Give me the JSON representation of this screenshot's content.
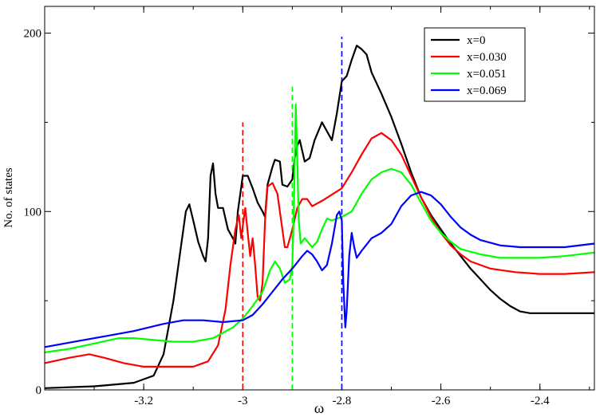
{
  "chart_data": {
    "type": "line",
    "title": "",
    "xlabel": "ω",
    "ylabel": "No. of states",
    "xlim": [
      -3.4,
      -2.29
    ],
    "ylim": [
      0,
      215
    ],
    "grid": false,
    "legend_position": "top-right",
    "x_ticks": [
      -3.2,
      -3.0,
      -2.8,
      -2.6,
      -2.4
    ],
    "x_tick_labels": [
      "-3.2",
      "-3",
      "-2.8",
      "-2.6",
      "-2.4"
    ],
    "y_ticks": [
      0,
      100,
      200
    ],
    "y_tick_labels": [
      "0",
      "100",
      "200"
    ],
    "series": [
      {
        "name": "x=0",
        "color": "#000000",
        "points": [
          [
            -3.4,
            1
          ],
          [
            -3.3,
            2
          ],
          [
            -3.22,
            4
          ],
          [
            -3.18,
            8
          ],
          [
            -3.16,
            20
          ],
          [
            -3.14,
            50
          ],
          [
            -3.125,
            80
          ],
          [
            -3.115,
            100
          ],
          [
            -3.108,
            104
          ],
          [
            -3.1,
            95
          ],
          [
            -3.09,
            83
          ],
          [
            -3.08,
            75
          ],
          [
            -3.075,
            72
          ],
          [
            -3.07,
            85
          ],
          [
            -3.065,
            120
          ],
          [
            -3.06,
            127
          ],
          [
            -3.055,
            110
          ],
          [
            -3.05,
            102
          ],
          [
            -3.04,
            102
          ],
          [
            -3.03,
            90
          ],
          [
            -3.02,
            85
          ],
          [
            -3.015,
            82
          ],
          [
            -3.01,
            100
          ],
          [
            -3.0,
            120
          ],
          [
            -2.99,
            120
          ],
          [
            -2.98,
            113
          ],
          [
            -2.97,
            105
          ],
          [
            -2.96,
            100
          ],
          [
            -2.955,
            97
          ],
          [
            -2.95,
            115
          ],
          [
            -2.94,
            125
          ],
          [
            -2.935,
            129
          ],
          [
            -2.925,
            128
          ],
          [
            -2.92,
            115
          ],
          [
            -2.91,
            114
          ],
          [
            -2.9,
            118
          ],
          [
            -2.895,
            130
          ],
          [
            -2.89,
            137
          ],
          [
            -2.885,
            140
          ],
          [
            -2.875,
            128
          ],
          [
            -2.865,
            130
          ],
          [
            -2.855,
            140
          ],
          [
            -2.84,
            150
          ],
          [
            -2.83,
            145
          ],
          [
            -2.82,
            140
          ],
          [
            -2.81,
            155
          ],
          [
            -2.8,
            173
          ],
          [
            -2.79,
            176
          ],
          [
            -2.78,
            185
          ],
          [
            -2.77,
            193
          ],
          [
            -2.76,
            191
          ],
          [
            -2.75,
            188
          ],
          [
            -2.74,
            178
          ],
          [
            -2.72,
            166
          ],
          [
            -2.7,
            153
          ],
          [
            -2.68,
            138
          ],
          [
            -2.66,
            122
          ],
          [
            -2.64,
            108
          ],
          [
            -2.62,
            98
          ],
          [
            -2.6,
            90
          ],
          [
            -2.58,
            82
          ],
          [
            -2.56,
            75
          ],
          [
            -2.54,
            68
          ],
          [
            -2.52,
            62
          ],
          [
            -2.5,
            56
          ],
          [
            -2.48,
            51
          ],
          [
            -2.46,
            47
          ],
          [
            -2.44,
            44
          ],
          [
            -2.42,
            43
          ],
          [
            -2.4,
            43
          ],
          [
            -2.35,
            43
          ],
          [
            -2.29,
            43
          ]
        ]
      },
      {
        "name": "x=0.030",
        "color": "#ff0000",
        "points": [
          [
            -3.4,
            15
          ],
          [
            -3.35,
            18
          ],
          [
            -3.31,
            20
          ],
          [
            -3.28,
            18
          ],
          [
            -3.24,
            15
          ],
          [
            -3.2,
            13
          ],
          [
            -3.16,
            13
          ],
          [
            -3.1,
            13
          ],
          [
            -3.07,
            16
          ],
          [
            -3.05,
            25
          ],
          [
            -3.035,
            45
          ],
          [
            -3.025,
            70
          ],
          [
            -3.015,
            90
          ],
          [
            -3.008,
            98
          ],
          [
            -3.003,
            85
          ],
          [
            -3.0,
            92
          ],
          [
            -2.995,
            102
          ],
          [
            -2.99,
            88
          ],
          [
            -2.985,
            75
          ],
          [
            -2.98,
            85
          ],
          [
            -2.975,
            70
          ],
          [
            -2.97,
            52
          ],
          [
            -2.965,
            50
          ],
          [
            -2.96,
            60
          ],
          [
            -2.955,
            95
          ],
          [
            -2.95,
            114
          ],
          [
            -2.94,
            116
          ],
          [
            -2.93,
            110
          ],
          [
            -2.92,
            90
          ],
          [
            -2.915,
            80
          ],
          [
            -2.91,
            80
          ],
          [
            -2.9,
            90
          ],
          [
            -2.89,
            102
          ],
          [
            -2.88,
            107
          ],
          [
            -2.87,
            107
          ],
          [
            -2.86,
            103
          ],
          [
            -2.84,
            106
          ],
          [
            -2.8,
            113
          ],
          [
            -2.78,
            122
          ],
          [
            -2.76,
            132
          ],
          [
            -2.74,
            141
          ],
          [
            -2.72,
            144
          ],
          [
            -2.7,
            140
          ],
          [
            -2.68,
            132
          ],
          [
            -2.66,
            120
          ],
          [
            -2.64,
            108
          ],
          [
            -2.62,
            97
          ],
          [
            -2.6,
            88
          ],
          [
            -2.58,
            81
          ],
          [
            -2.56,
            76
          ],
          [
            -2.54,
            72
          ],
          [
            -2.5,
            68
          ],
          [
            -2.45,
            66
          ],
          [
            -2.4,
            65
          ],
          [
            -2.35,
            65
          ],
          [
            -2.29,
            66
          ]
        ]
      },
      {
        "name": "x=0.051",
        "color": "#00ff00",
        "points": [
          [
            -3.4,
            21
          ],
          [
            -3.35,
            23
          ],
          [
            -3.3,
            26
          ],
          [
            -3.25,
            29
          ],
          [
            -3.22,
            29
          ],
          [
            -3.18,
            28
          ],
          [
            -3.14,
            27
          ],
          [
            -3.1,
            27
          ],
          [
            -3.06,
            29
          ],
          [
            -3.02,
            35
          ],
          [
            -3.0,
            40
          ],
          [
            -2.98,
            47
          ],
          [
            -2.96,
            55
          ],
          [
            -2.945,
            67
          ],
          [
            -2.935,
            72
          ],
          [
            -2.925,
            68
          ],
          [
            -2.915,
            60
          ],
          [
            -2.905,
            62
          ],
          [
            -2.9,
            70
          ],
          [
            -2.897,
            100
          ],
          [
            -2.893,
            160
          ],
          [
            -2.89,
            130
          ],
          [
            -2.887,
            95
          ],
          [
            -2.883,
            82
          ],
          [
            -2.875,
            85
          ],
          [
            -2.86,
            80
          ],
          [
            -2.85,
            83
          ],
          [
            -2.84,
            90
          ],
          [
            -2.83,
            96
          ],
          [
            -2.82,
            95
          ],
          [
            -2.8,
            97
          ],
          [
            -2.78,
            100
          ],
          [
            -2.76,
            110
          ],
          [
            -2.74,
            118
          ],
          [
            -2.72,
            122
          ],
          [
            -2.7,
            124
          ],
          [
            -2.68,
            122
          ],
          [
            -2.66,
            115
          ],
          [
            -2.64,
            105
          ],
          [
            -2.62,
            95
          ],
          [
            -2.6,
            88
          ],
          [
            -2.58,
            83
          ],
          [
            -2.56,
            79
          ],
          [
            -2.52,
            76
          ],
          [
            -2.48,
            74
          ],
          [
            -2.44,
            74
          ],
          [
            -2.4,
            74
          ],
          [
            -2.35,
            75
          ],
          [
            -2.29,
            77
          ]
        ]
      },
      {
        "name": "x=0.069",
        "color": "#0000ff",
        "points": [
          [
            -3.4,
            24
          ],
          [
            -3.34,
            27
          ],
          [
            -3.28,
            30
          ],
          [
            -3.22,
            33
          ],
          [
            -3.16,
            37
          ],
          [
            -3.12,
            39
          ],
          [
            -3.08,
            39
          ],
          [
            -3.04,
            38
          ],
          [
            -3.0,
            39
          ],
          [
            -2.98,
            42
          ],
          [
            -2.96,
            48
          ],
          [
            -2.94,
            55
          ],
          [
            -2.92,
            62
          ],
          [
            -2.9,
            68
          ],
          [
            -2.88,
            75
          ],
          [
            -2.87,
            78
          ],
          [
            -2.86,
            76
          ],
          [
            -2.85,
            72
          ],
          [
            -2.84,
            67
          ],
          [
            -2.83,
            70
          ],
          [
            -2.82,
            82
          ],
          [
            -2.81,
            98
          ],
          [
            -2.805,
            100
          ],
          [
            -2.8,
            95
          ],
          [
            -2.797,
            60
          ],
          [
            -2.793,
            35
          ],
          [
            -2.79,
            45
          ],
          [
            -2.785,
            75
          ],
          [
            -2.78,
            88
          ],
          [
            -2.775,
            80
          ],
          [
            -2.77,
            74
          ],
          [
            -2.76,
            78
          ],
          [
            -2.74,
            85
          ],
          [
            -2.72,
            88
          ],
          [
            -2.7,
            93
          ],
          [
            -2.68,
            103
          ],
          [
            -2.66,
            109
          ],
          [
            -2.64,
            111
          ],
          [
            -2.62,
            109
          ],
          [
            -2.6,
            104
          ],
          [
            -2.58,
            97
          ],
          [
            -2.56,
            91
          ],
          [
            -2.54,
            87
          ],
          [
            -2.52,
            84
          ],
          [
            -2.48,
            81
          ],
          [
            -2.44,
            80
          ],
          [
            -2.4,
            80
          ],
          [
            -2.35,
            80
          ],
          [
            -2.29,
            82
          ]
        ]
      }
    ],
    "vertical_lines": [
      {
        "x": -3.0,
        "y_top": 150,
        "color": "#ff0000",
        "style": "dashed"
      },
      {
        "x": -2.9,
        "y_top": 170,
        "color": "#00ff00",
        "style": "dashed"
      },
      {
        "x": -2.8,
        "y_top": 198,
        "color": "#0000ff",
        "style": "dashed"
      }
    ]
  }
}
